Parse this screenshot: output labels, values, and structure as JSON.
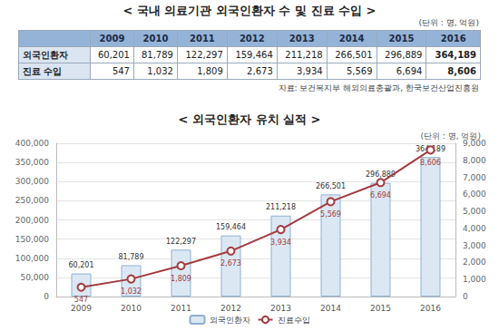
{
  "table": {
    "title": "< 국내 의료기관 외국인환자 수 및 진료 수입 >",
    "unit": "(단위 : 명, 억원)",
    "columns": [
      "2009",
      "2010",
      "2011",
      "2012",
      "2013",
      "2014",
      "2015",
      "2016"
    ],
    "rows": [
      {
        "label": "외국인환자",
        "cells": [
          "60,201",
          "81,789",
          "122,297",
          "159,464",
          "211,218",
          "266,501",
          "296,889",
          "364,189"
        ]
      },
      {
        "label": "진료 수입",
        "cells": [
          "547",
          "1,032",
          "1,809",
          "2,673",
          "3,934",
          "5,569",
          "6,694",
          "8,606"
        ]
      }
    ],
    "source": "자료: 보건복지부 해외의료총괄과, 한국보건산업진흥원"
  },
  "chart_data": {
    "type": "bar",
    "title": "< 외국인환자 유치 실적 >",
    "subtitle": "(단위 : 명, 억원)",
    "categories": [
      "2009",
      "2010",
      "2011",
      "2012",
      "2013",
      "2014",
      "2015",
      "2016"
    ],
    "series": [
      {
        "name": "외국인환자",
        "type": "bar",
        "axis": "y",
        "color": "#dbe8f4",
        "values": [
          60201,
          81789,
          122297,
          159464,
          211218,
          266501,
          296889,
          364189
        ],
        "value_labels": [
          "60,201",
          "81,789",
          "122,297",
          "159,464",
          "211,218",
          "266,501",
          "296,889",
          "364,189"
        ]
      },
      {
        "name": "진료수입",
        "type": "line",
        "axis": "y2",
        "color": "#a33b3f",
        "marker": "open_circle",
        "line_style": "solid",
        "values": [
          547,
          1032,
          1809,
          2673,
          3934,
          5569,
          6694,
          8606
        ],
        "value_labels": [
          "547",
          "1,032",
          "1,809",
          "2,673",
          "3,934",
          "5,569",
          "6,694",
          "8,606"
        ]
      }
    ],
    "ylim": [
      0,
      400000
    ],
    "yticks": [
      0,
      {
        "value": 50000,
        "label": "50,000"
      },
      {
        "value": 100000,
        "label": "100,000"
      },
      {
        "value": 150000,
        "label": "150,000"
      },
      {
        "value": 200000,
        "label": "200,000"
      },
      {
        "value": 250000,
        "label": "250,000"
      },
      {
        "value": 300000,
        "label": "300,000"
      },
      {
        "value": 350000,
        "label": "350,000"
      },
      {
        "value": 400000,
        "label": "400,000"
      }
    ],
    "y2lim": [
      0,
      9000
    ],
    "y2ticks": [
      0,
      {
        "value": 1000,
        "label": "1,000"
      },
      {
        "value": 2000,
        "label": "2,000"
      },
      {
        "value": 3000,
        "label": "3,000"
      },
      {
        "value": 4000,
        "label": "4,000"
      },
      {
        "value": 5000,
        "label": "5,000"
      },
      {
        "value": 6000,
        "label": "6,000"
      },
      {
        "value": 7000,
        "label": "7,000"
      },
      {
        "value": 8000,
        "label": "8,000"
      },
      {
        "value": 9000,
        "label": "9,000"
      }
    ],
    "grid": true,
    "legend": "bottom",
    "data_labels": true
  }
}
